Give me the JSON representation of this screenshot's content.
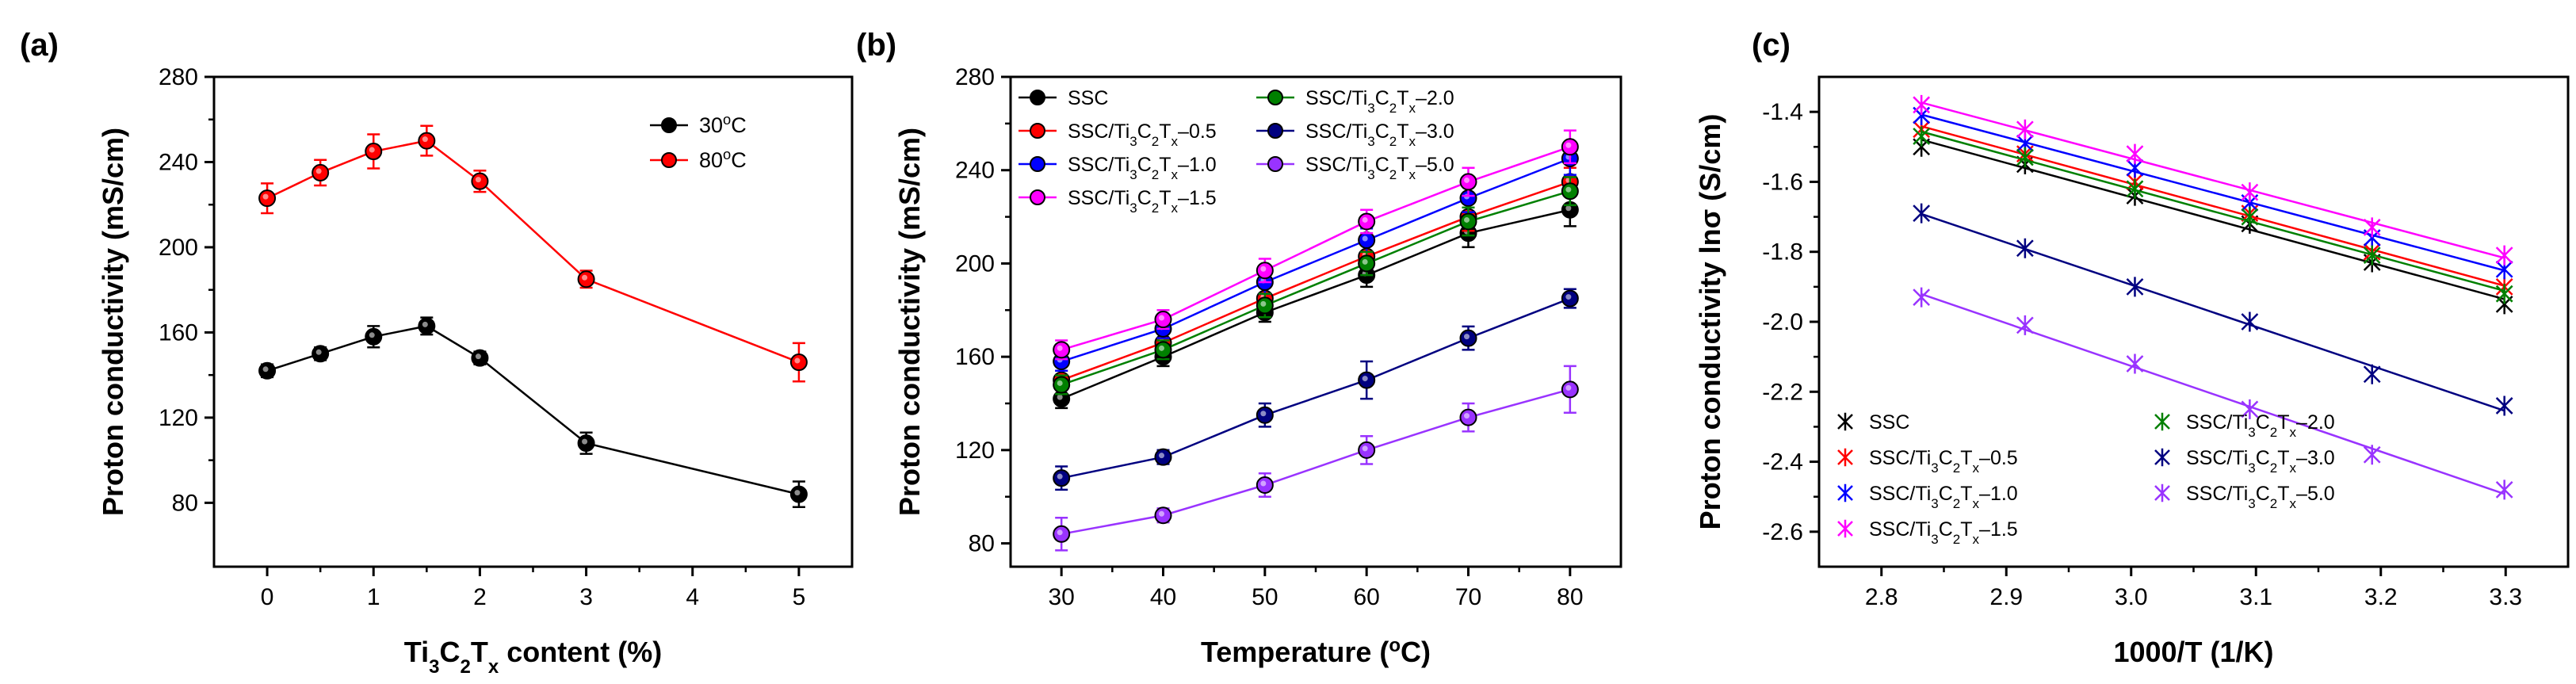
{
  "chart_data": [
    {
      "type": "line",
      "panel_label": "(a)",
      "xlabel": "Ti3C2Tx content (%)",
      "ylabel": "Proton conductivity (mS/cm)",
      "xlim": [
        -0.5,
        5.5
      ],
      "ylim": [
        50,
        280
      ],
      "xticks": [
        0,
        1,
        2,
        3,
        4,
        5
      ],
      "yticks": [
        80,
        120,
        160,
        200,
        240,
        280
      ],
      "x": [
        0,
        0.5,
        1,
        1.5,
        2,
        3,
        5
      ],
      "series": [
        {
          "name": "30°C",
          "color": "#000000",
          "values": [
            142,
            150,
            158,
            163,
            148,
            108,
            84
          ],
          "errors": [
            3,
            3,
            5,
            4,
            3,
            5,
            6
          ]
        },
        {
          "name": "80°C",
          "color": "#ff0000",
          "values": [
            223,
            235,
            245,
            250,
            231,
            185,
            146
          ],
          "errors": [
            7,
            6,
            8,
            7,
            5,
            4,
            9
          ]
        }
      ],
      "legend_position": "top-right"
    },
    {
      "type": "line",
      "panel_label": "(b)",
      "xlabel": "Temperature (°C)",
      "ylabel": "Proton conductivity (mS/cm)",
      "xlim": [
        25,
        85
      ],
      "ylim": [
        70,
        280
      ],
      "xticks": [
        30,
        40,
        50,
        60,
        70,
        80
      ],
      "yticks": [
        80,
        120,
        160,
        200,
        240,
        280
      ],
      "x": [
        30,
        40,
        50,
        60,
        70,
        80
      ],
      "series": [
        {
          "name": "SSC",
          "color": "#000000",
          "values": [
            142,
            160,
            179,
            195,
            213,
            223
          ],
          "errors": [
            4,
            4,
            4,
            5,
            6,
            7
          ]
        },
        {
          "name": "SSC/Ti3C2Tx-0.5",
          "color": "#ff0000",
          "values": [
            150,
            166,
            185,
            203,
            220,
            235
          ],
          "errors": [
            4,
            4,
            5,
            5,
            6,
            6
          ]
        },
        {
          "name": "SSC/Ti3C2Tx-1.0",
          "color": "#0000ff",
          "values": [
            158,
            172,
            192,
            210,
            228,
            245
          ],
          "errors": [
            4,
            4,
            5,
            5,
            6,
            7
          ]
        },
        {
          "name": "SSC/Ti3C2Tx-1.5",
          "color": "#ff00ff",
          "values": [
            163,
            176,
            197,
            218,
            235,
            250
          ],
          "errors": [
            4,
            4,
            5,
            5,
            6,
            7
          ]
        },
        {
          "name": "SSC/Ti3C2Tx-2.0",
          "color": "#008000",
          "values": [
            148,
            163,
            182,
            200,
            218,
            231
          ],
          "errors": [
            4,
            4,
            5,
            5,
            6,
            6
          ]
        },
        {
          "name": "SSC/Ti3C2Tx-3.0",
          "color": "#000080",
          "values": [
            108,
            117,
            135,
            150,
            168,
            185
          ],
          "errors": [
            5,
            3,
            5,
            8,
            5,
            4
          ]
        },
        {
          "name": "SSC/Ti3C2Tx-5.0",
          "color": "#9933ff",
          "values": [
            84,
            92,
            105,
            120,
            134,
            146
          ],
          "errors": [
            7,
            3,
            5,
            6,
            6,
            10
          ]
        }
      ],
      "legend_position": "top-left"
    },
    {
      "type": "scatter",
      "panel_label": "(c)",
      "xlabel": "1000/T (1/K)",
      "ylabel": "Proton conductivity lnσ (S/cm)",
      "xlim": [
        2.75,
        3.35
      ],
      "ylim": [
        -2.7,
        -1.3
      ],
      "xticks": [
        2.8,
        2.9,
        3.0,
        3.1,
        3.2,
        3.3
      ],
      "yticks": [
        -2.6,
        -2.4,
        -2.2,
        -2.0,
        -1.8,
        -1.6,
        -1.4
      ],
      "x": [
        2.832,
        2.915,
        3.003,
        3.095,
        3.193,
        3.299
      ],
      "series": [
        {
          "name": "SSC",
          "color": "#000000",
          "values": [
            -1.5,
            -1.55,
            -1.64,
            -1.72,
            -1.83,
            -1.95
          ]
        },
        {
          "name": "SSC/Ti3C2Tx-0.5",
          "color": "#ff0000",
          "values": [
            -1.45,
            -1.52,
            -1.6,
            -1.69,
            -1.8,
            -1.9
          ]
        },
        {
          "name": "SSC/Ti3C2Tx-1.0",
          "color": "#0000ff",
          "values": [
            -1.41,
            -1.49,
            -1.56,
            -1.66,
            -1.76,
            -1.85
          ]
        },
        {
          "name": "SSC/Ti3C2Tx-1.5",
          "color": "#ff00ff",
          "values": [
            -1.38,
            -1.45,
            -1.52,
            -1.63,
            -1.73,
            -1.81
          ]
        },
        {
          "name": "SSC/Ti3C2Tx-2.0",
          "color": "#008000",
          "values": [
            -1.47,
            -1.53,
            -1.62,
            -1.7,
            -1.81,
            -1.92
          ]
        },
        {
          "name": "SSC/Ti3C2Tx-3.0",
          "color": "#000080",
          "values": [
            -1.69,
            -1.79,
            -1.9,
            -2.0,
            -2.15,
            -2.24
          ]
        },
        {
          "name": "SSC/Ti3C2Tx-5.0",
          "color": "#9933ff",
          "values": [
            -1.93,
            -2.01,
            -2.12,
            -2.25,
            -2.38,
            -2.48
          ]
        }
      ],
      "legend_position": "bottom-left"
    }
  ]
}
